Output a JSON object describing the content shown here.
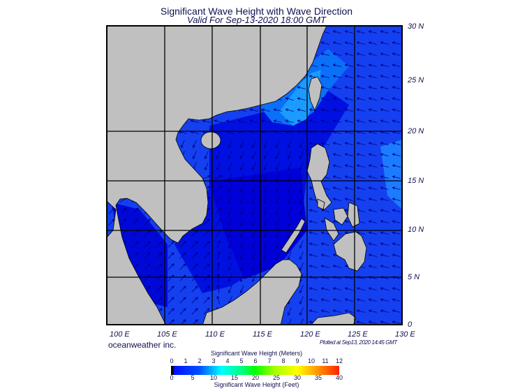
{
  "header": {
    "title": "Significant Wave Height with Wave Direction",
    "subtitle": "Valid For Sep-13-2020 18:00 GMT"
  },
  "map": {
    "lat_labels": [
      "30 N",
      "25 N",
      "20 N",
      "15 N",
      "10 N",
      "5 N",
      "0"
    ],
    "lon_labels": [
      "100 E",
      "105 E",
      "110 E",
      "115 E",
      "120 E",
      "125 E",
      "130 E"
    ],
    "colors": {
      "land": "#c0c0c0",
      "ocean_low": "#0000e0",
      "ocean_mid": "#1038f0",
      "ocean_high": "#1a8cff",
      "grid": "#000000",
      "arrow": "#000080"
    }
  },
  "footer": {
    "credit": "oceanweather inc.",
    "plotted": "Plotted at Sep13, 2020 14:45 GMT"
  },
  "legend": {
    "meters_title": "Significant Wave Height (Meters)",
    "meters_ticks": [
      "0",
      "1",
      "2",
      "3",
      "4",
      "5",
      "6",
      "7",
      "8",
      "9",
      "10",
      "11",
      "12"
    ],
    "feet_title": "Significant Wave Height (Feet)",
    "feet_ticks": [
      "0",
      "5",
      "10",
      "15",
      "20",
      "25",
      "30",
      "35",
      "40"
    ]
  }
}
